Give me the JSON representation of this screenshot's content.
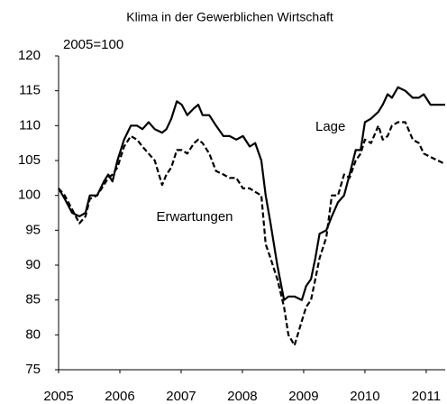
{
  "chart_data": {
    "type": "line",
    "title": "Klima in der Gewerblichen Wirtschaft",
    "annotations": [
      "2005=100",
      "Lage",
      "Erwartungen"
    ],
    "x": [
      2005.0,
      2005.1,
      2005.22,
      2005.34,
      2005.44,
      2005.51,
      2005.63,
      2005.74,
      2005.81,
      2005.88,
      2005.96,
      2006.07,
      2006.18,
      2006.28,
      2006.37,
      2006.47,
      2006.57,
      2006.69,
      2006.76,
      2006.84,
      2006.93,
      2007.01,
      2007.1,
      2007.21,
      2007.28,
      2007.35,
      2007.46,
      2007.57,
      2007.69,
      2007.79,
      2007.9,
      2008.01,
      2008.12,
      2008.21,
      2008.31,
      2008.38,
      2008.46,
      2008.57,
      2008.68,
      2008.75,
      2008.85,
      2008.97,
      2009.04,
      2009.12,
      2009.19,
      2009.26,
      2009.37,
      2009.46,
      2009.56,
      2009.66,
      2009.75,
      2009.85,
      2009.93,
      2010.0,
      2010.1,
      2010.22,
      2010.29,
      2010.37,
      2010.44,
      2010.54,
      2010.66,
      2010.78,
      2010.88,
      2010.96,
      2011.07,
      2011.31
    ],
    "series": [
      {
        "name": "Lage",
        "color": "#000000",
        "dashed": false,
        "values": [
          101,
          99.5,
          97.5,
          97,
          97.5,
          100,
          100,
          102,
          103,
          102,
          105,
          108,
          110,
          110,
          109.5,
          110.5,
          109.5,
          109,
          109.5,
          111,
          113.5,
          113,
          111.5,
          112.5,
          113,
          111.5,
          111.5,
          110,
          108.5,
          108.5,
          108,
          108.5,
          107,
          107.5,
          105,
          100,
          96,
          90,
          85,
          85.5,
          85.5,
          85,
          87,
          88,
          91,
          94.5,
          95,
          97,
          99,
          100,
          103,
          106.5,
          106.5,
          110.5,
          111,
          112,
          113,
          114.5,
          114,
          115.5,
          115,
          114,
          114,
          114.5,
          113,
          113
        ]
      },
      {
        "name": "Erwartungen",
        "color": "#000000",
        "dashed": true,
        "values": [
          101,
          100,
          98,
          96,
          97,
          99.5,
          100,
          101.5,
          102.5,
          103,
          104,
          107,
          108.5,
          108,
          107,
          106,
          105,
          101.5,
          103,
          104,
          106.5,
          106.5,
          106,
          107.5,
          108,
          107.5,
          106,
          103.5,
          103,
          102.5,
          102.5,
          101,
          101,
          100.5,
          100,
          93,
          91,
          88,
          84,
          80,
          78.5,
          82,
          84,
          85,
          88,
          91,
          94,
          100,
          100,
          103,
          102.5,
          105,
          106,
          108,
          107.5,
          110,
          108,
          108.5,
          110,
          110.5,
          110.5,
          108,
          107.5,
          106,
          105.5,
          104.5
        ]
      }
    ],
    "xlim": [
      2005,
      2011.31
    ],
    "xticks": [
      2005,
      2006,
      2007,
      2008,
      2009,
      2010,
      2011
    ],
    "ylim": [
      75,
      120
    ],
    "yticks": [
      75,
      80,
      85,
      90,
      95,
      100,
      105,
      110,
      115,
      120
    ],
    "grid": false
  }
}
